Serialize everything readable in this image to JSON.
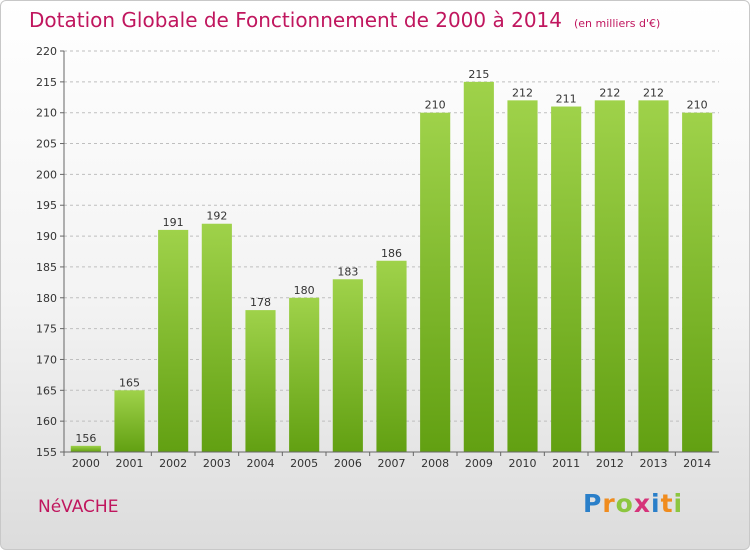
{
  "chart_data": {
    "type": "bar",
    "title": "Dotation Globale de Fonctionnement de 2000 à 2014",
    "subtitle": "(en milliers d'€)",
    "categories": [
      "2000",
      "2001",
      "2002",
      "2003",
      "2004",
      "2005",
      "2006",
      "2007",
      "2008",
      "2009",
      "2010",
      "2011",
      "2012",
      "2013",
      "2014"
    ],
    "values": [
      156,
      165,
      191,
      192,
      178,
      180,
      183,
      186,
      210,
      215,
      212,
      211,
      212,
      212,
      210
    ],
    "ylim": [
      155,
      220
    ],
    "yticks": [
      155,
      160,
      165,
      170,
      175,
      180,
      185,
      190,
      195,
      200,
      205,
      210,
      215,
      220
    ],
    "grid": true,
    "bar_color_top": "#9fd24a",
    "bar_color_bottom": "#62a012"
  },
  "footer": {
    "commune": "NéVACHE",
    "brand_letters": [
      "P",
      "r",
      "o",
      "x",
      "i",
      "t",
      "i"
    ],
    "brand_colors": [
      "#2a7fc9",
      "#f08c1e",
      "#8cc63f",
      "#d6337a",
      "#2a7fc9",
      "#f08c1e",
      "#8cc63f"
    ]
  }
}
